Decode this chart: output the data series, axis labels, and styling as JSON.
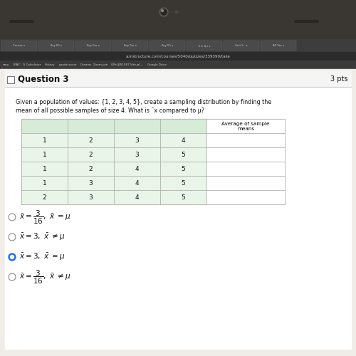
{
  "question_number": "Question 3",
  "pts": "3 pts",
  "question_text_line1": "Given a population of values: {1, 2, 3, 4, 5}, create a sampling distribution by finding the",
  "question_text_line2": "mean of all possible samples of size 4. What is ¯x compared to μ?",
  "table_col_header": "Average of sample\nmeans",
  "table_rows": [
    [
      "1",
      "2",
      "3",
      "4",
      ""
    ],
    [
      "1",
      "2",
      "3",
      "5",
      ""
    ],
    [
      "1",
      "2",
      "4",
      "5",
      ""
    ],
    [
      "1",
      "3",
      "4",
      "5",
      ""
    ],
    [
      "2",
      "3",
      "4",
      "5",
      ""
    ]
  ],
  "url_text": "a.instructure.com/courses/5040/quizzes/339390/take",
  "bookmark_items": [
    "nary",
    "OPAC",
    "G Calculator",
    "History",
    "grade saver",
    "Desmos",
    "Zoom join",
    "GRrLJW1987 Virtual...",
    "Google Drive"
  ],
  "laptop_bezel_color": "#3a3632",
  "tab_bar_color": "#3d3d3d",
  "url_bar_color": "#2b2b2b",
  "url_text_color": "#cccccc",
  "bookmark_bar_color": "#3a3a3a",
  "bookmark_text_color": "#cccccc",
  "content_bg": "#f0ede8",
  "panel_bg": "#ffffff",
  "header_bar_bg": "#f5f5f5",
  "header_border_color": "#cccccc",
  "table_header_bg": "#d6ecd6",
  "table_cell_bg": "#e8f5e8",
  "table_border_color": "#b0b0b0",
  "table_text_color": "#111111",
  "title_text_color": "#111111",
  "question_text_color": "#111111",
  "choice_text_color": "#111111",
  "selected_fill": "#1a73e8",
  "unselected_ring": "#888888"
}
